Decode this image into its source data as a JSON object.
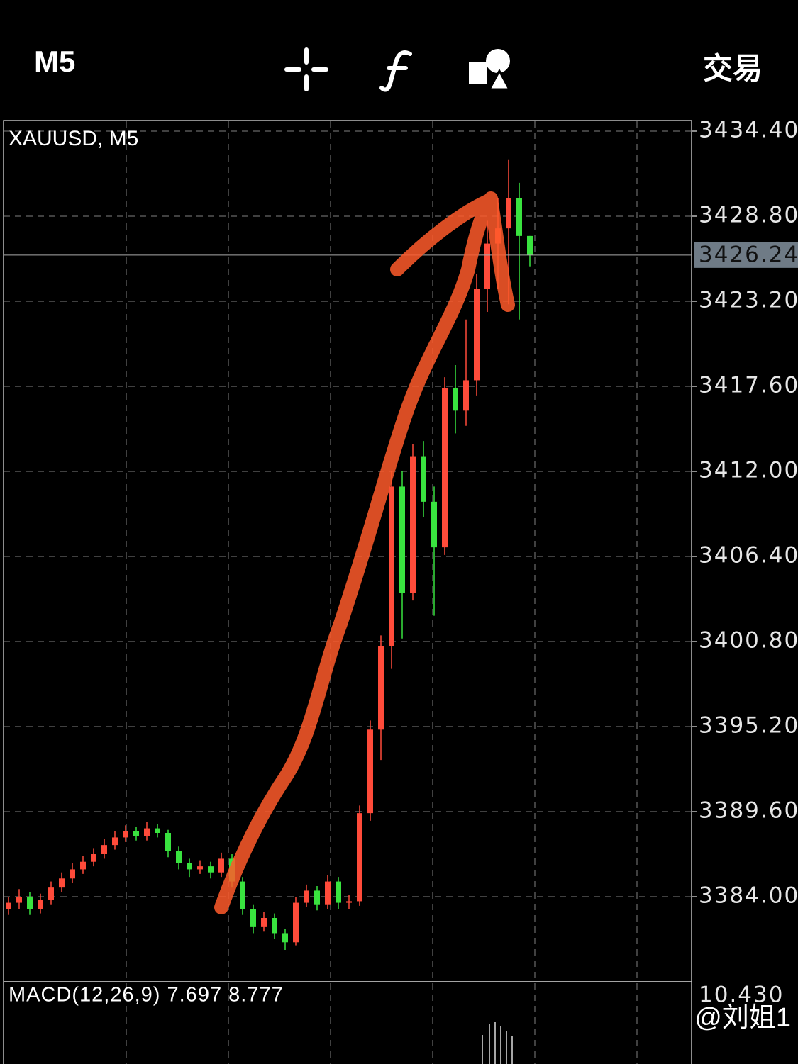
{
  "toolbar": {
    "timeframe": "M5",
    "trade": "交易"
  },
  "chart_data": {
    "type": "candlestick",
    "title": "XAUUSD, M5",
    "up_color": "#ff4b3a",
    "down_color": "#39e33f",
    "ylim": [
      3378.4,
      3435.1
    ],
    "yticks": [
      {
        "value": 3434.4,
        "label": "3434.40"
      },
      {
        "value": 3428.8,
        "label": "3428.80"
      },
      {
        "value": 3423.2,
        "label": "3423.20"
      },
      {
        "value": 3417.6,
        "label": "3417.60"
      },
      {
        "value": 3412.0,
        "label": "3412.00"
      },
      {
        "value": 3406.4,
        "label": "3406.40"
      },
      {
        "value": 3400.8,
        "label": "3400.80"
      },
      {
        "value": 3395.2,
        "label": "3395.20"
      },
      {
        "value": 3389.6,
        "label": "3389.60"
      },
      {
        "value": 3384.0,
        "label": "3384.00"
      }
    ],
    "last_price": 3426.24,
    "open": [
      3383.2,
      3383.6,
      3384.0,
      3383.2,
      3383.8,
      3384.6,
      3385.2,
      3385.8,
      3386.3,
      3386.8,
      3387.4,
      3387.9,
      3388.3,
      3388.0,
      3388.5,
      3388.2,
      3387.0,
      3386.2,
      3385.8,
      3386.0,
      3385.6,
      3386.5,
      3385.0,
      3383.2,
      3382.0,
      3382.6,
      3381.6,
      3381.0,
      3383.6,
      3384.4,
      3383.5,
      3385.0,
      3383.6,
      3383.7,
      3389.5,
      3395.0,
      3400.5,
      3411.0,
      3404.0,
      3413.0,
      3410.0,
      3407.0,
      3417.5,
      3416.0,
      3418.0,
      3424.0,
      3427.0,
      3428.0,
      3430.0,
      3427.5
    ],
    "high": [
      3384.0,
      3384.5,
      3384.3,
      3384.2,
      3385.0,
      3385.6,
      3386.2,
      3386.7,
      3387.2,
      3387.8,
      3388.3,
      3388.7,
      3388.6,
      3388.9,
      3388.8,
      3388.4,
      3387.3,
      3386.5,
      3386.4,
      3386.3,
      3386.9,
      3386.8,
      3385.3,
      3383.5,
      3383.0,
      3382.9,
      3381.9,
      3384.0,
      3384.8,
      3384.7,
      3385.4,
      3385.3,
      3384.1,
      3390.0,
      3395.6,
      3401.2,
      3412.0,
      3412.0,
      3413.8,
      3414.0,
      3411.0,
      3418.2,
      3419.0,
      3422.0,
      3425.0,
      3428.5,
      3430.0,
      3432.5,
      3431.0,
      3427.5
    ],
    "low": [
      3382.8,
      3383.2,
      3382.8,
      3382.9,
      3383.5,
      3384.3,
      3384.9,
      3385.5,
      3386.0,
      3386.5,
      3387.1,
      3387.6,
      3387.7,
      3387.7,
      3387.9,
      3386.6,
      3385.8,
      3385.3,
      3385.5,
      3385.2,
      3385.3,
      3384.6,
      3382.8,
      3381.6,
      3381.7,
      3381.2,
      3380.5,
      3380.8,
      3383.3,
      3383.1,
      3383.2,
      3383.2,
      3383.2,
      3383.4,
      3389.0,
      3393.0,
      3399.0,
      3401.0,
      3403.5,
      3409.0,
      3402.5,
      3406.5,
      3414.5,
      3415.0,
      3417.0,
      3422.5,
      3424.0,
      3423.0,
      3422.0,
      3425.5
    ],
    "close": [
      3383.6,
      3384.0,
      3383.2,
      3383.8,
      3384.6,
      3385.2,
      3385.8,
      3386.3,
      3386.8,
      3387.4,
      3387.9,
      3388.3,
      3388.0,
      3388.5,
      3388.2,
      3387.0,
      3386.2,
      3385.8,
      3386.0,
      3385.6,
      3386.5,
      3385.0,
      3383.2,
      3382.0,
      3382.6,
      3381.6,
      3381.0,
      3383.6,
      3384.4,
      3383.5,
      3385.0,
      3383.6,
      3383.7,
      3389.5,
      3395.0,
      3400.5,
      3411.0,
      3404.0,
      3413.0,
      3410.0,
      3407.0,
      3417.5,
      3416.0,
      3418.0,
      3424.0,
      3427.0,
      3428.0,
      3430.0,
      3427.5,
      3426.24
    ]
  },
  "macd": {
    "label": "MACD(12,26,9) 7.697 8.777",
    "scale_max": "10.430"
  },
  "watermark": "@刘姐1"
}
